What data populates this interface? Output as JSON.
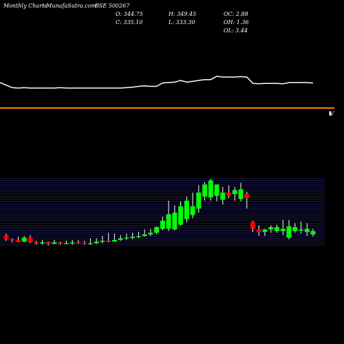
{
  "header": {
    "left1": "Monthly Charts",
    "left2": "-  MunafaSutra.com",
    "symbol": "BSE 500267",
    "o": "O: 344.75",
    "c": "C: 335.10",
    "h": "H: 349.45",
    "l": "L: 333.30",
    "oc": "OC: 2.88",
    "oh": "OH: 1.36",
    "ol": "OL: 3.44"
  },
  "colors": {
    "up": "#00ff00",
    "down": "#ff0000",
    "line": "#ffffff",
    "separator": "#ff8000",
    "grid": "#2a2a80"
  },
  "chart_data": [
    {
      "type": "line",
      "x": [
        1,
        2,
        3,
        4,
        5,
        6,
        7,
        8,
        9,
        10,
        11,
        12,
        13,
        14,
        15,
        16,
        17,
        18,
        19,
        20,
        21,
        22,
        23,
        24,
        25,
        26,
        27,
        28,
        29,
        30,
        31,
        32,
        33,
        34,
        35,
        36,
        37,
        38,
        39,
        40,
        41,
        42,
        43,
        44,
        45,
        46,
        47,
        48,
        49,
        50,
        51,
        52
      ],
      "values": [
        65,
        53,
        52,
        53,
        52,
        52,
        52,
        52,
        52,
        53,
        52,
        52,
        52,
        52,
        52,
        52,
        52,
        52,
        52,
        52,
        53,
        54,
        56,
        57,
        56,
        56,
        64,
        65,
        66,
        70,
        66,
        68,
        70,
        72,
        72,
        80,
        78,
        78,
        78,
        79,
        78,
        63,
        62,
        63,
        63,
        63,
        62,
        65,
        65,
        65,
        65,
        64
      ],
      "ylim": [
        0,
        130
      ]
    },
    {
      "type": "candlestick",
      "x": [
        1,
        2,
        3,
        4,
        5,
        6,
        7,
        8,
        9,
        10,
        11,
        12,
        13,
        14,
        15,
        16,
        17,
        18,
        19,
        20,
        21,
        22,
        23,
        24,
        25,
        26,
        27,
        28,
        29,
        30,
        31,
        32,
        33,
        34,
        35,
        36,
        37,
        38,
        39,
        40,
        41,
        42,
        43,
        44,
        45,
        46,
        47,
        48,
        49,
        50,
        51,
        52
      ],
      "open": [
        342,
        337,
        336,
        334,
        339,
        333,
        332,
        333,
        331,
        333,
        332,
        332,
        333,
        332,
        331,
        332,
        334,
        335,
        334,
        336,
        338,
        339,
        340,
        341,
        343,
        345,
        350,
        350,
        349,
        355,
        362,
        367,
        375,
        390,
        389,
        391,
        386,
        395,
        393,
        387,
        393,
        358,
        349,
        346,
        349,
        347,
        347,
        339,
        347,
        349,
        346,
        343
      ],
      "close": [
        337,
        336,
        334,
        339,
        333,
        332,
        333,
        331,
        333,
        332,
        332,
        333,
        332,
        331,
        332,
        334,
        335,
        334,
        336,
        338,
        339,
        340,
        341,
        343,
        345,
        352,
        360,
        368,
        370,
        378,
        385,
        378,
        395,
        405,
        410,
        405,
        395,
        391,
        398,
        399,
        388,
        350,
        346,
        349,
        352,
        352,
        350,
        353,
        352,
        349,
        350,
        347
      ],
      "high": [
        344,
        338,
        340,
        341,
        342,
        335,
        336,
        334,
        336,
        334,
        335,
        336,
        336,
        335,
        338,
        338,
        341,
        345,
        344,
        342,
        344,
        345,
        346,
        349,
        350,
        353,
        365,
        385,
        379,
        384,
        390,
        395,
        404,
        408,
        412,
        405,
        402,
        404,
        402,
        407,
        396,
        360,
        354,
        350,
        354,
        355,
        361,
        361,
        357,
        359,
        357,
        350
      ],
      "low": [
        335,
        333,
        333,
        333,
        332,
        330,
        330,
        329,
        331,
        330,
        331,
        330,
        331,
        330,
        330,
        331,
        332,
        333,
        334,
        335,
        336,
        337,
        338,
        340,
        341,
        343,
        348,
        347,
        348,
        354,
        358,
        363,
        370,
        385,
        385,
        384,
        380,
        388,
        385,
        384,
        375,
        346,
        341,
        341,
        345,
        345,
        342,
        337,
        345,
        344,
        341,
        340
      ]
    }
  ]
}
